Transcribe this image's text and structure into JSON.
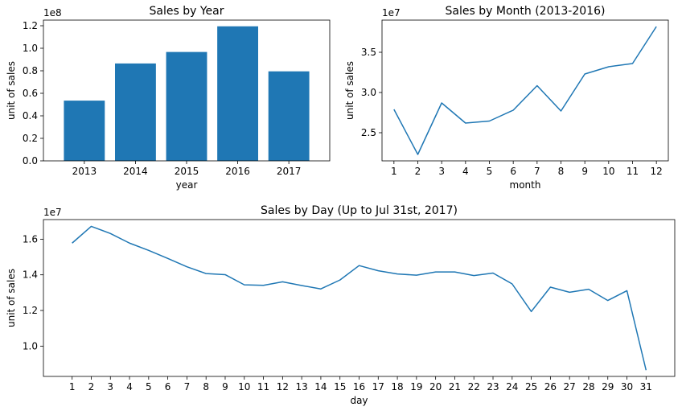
{
  "chart_data": [
    {
      "id": "year",
      "type": "bar",
      "title": "Sales by Year",
      "xlabel": "year",
      "ylabel": "unit of sales",
      "scale_label": "1e8",
      "categories": [
        "2013",
        "2014",
        "2015",
        "2016",
        "2017"
      ],
      "values": [
        0.535,
        0.865,
        0.967,
        1.195,
        0.795
      ],
      "ylim": [
        0,
        1.25
      ],
      "yticks": [
        0.0,
        0.2,
        0.4,
        0.6,
        0.8,
        1.0,
        1.2
      ],
      "ytick_labels": [
        "0.0",
        "0.2",
        "0.4",
        "0.6",
        "0.8",
        "1.0",
        "1.2"
      ],
      "color": "#1f77b4",
      "grid": false
    },
    {
      "id": "month",
      "type": "line",
      "title": "Sales by Month (2013-2016)",
      "xlabel": "month",
      "ylabel": "unit of sales",
      "scale_label": "1e7",
      "x": [
        1,
        2,
        3,
        4,
        5,
        6,
        7,
        8,
        9,
        10,
        11,
        12
      ],
      "values": [
        2.79,
        2.23,
        2.87,
        2.62,
        2.645,
        2.78,
        3.085,
        2.77,
        3.23,
        3.32,
        3.36,
        3.82
      ],
      "xlim": [
        0.5,
        12.5
      ],
      "ylim": [
        2.15,
        3.9
      ],
      "xticks": [
        1,
        2,
        3,
        4,
        5,
        6,
        7,
        8,
        9,
        10,
        11,
        12
      ],
      "yticks": [
        2.5,
        3.0,
        3.5
      ],
      "ytick_labels": [
        "2.5",
        "3.0",
        "3.5"
      ],
      "color": "#1f77b4",
      "grid": false
    },
    {
      "id": "day",
      "type": "line",
      "title": "Sales by Day (Up to Jul 31st, 2017)",
      "xlabel": "day",
      "ylabel": "unit of sales",
      "scale_label": "1e7",
      "x": [
        1,
        2,
        3,
        4,
        5,
        6,
        7,
        8,
        9,
        10,
        11,
        12,
        13,
        14,
        15,
        16,
        17,
        18,
        19,
        20,
        21,
        22,
        23,
        24,
        25,
        26,
        27,
        28,
        29,
        30,
        31
      ],
      "values": [
        1.578,
        1.672,
        1.632,
        1.578,
        1.537,
        1.492,
        1.445,
        1.407,
        1.401,
        1.344,
        1.341,
        1.361,
        1.34,
        1.321,
        1.371,
        1.452,
        1.423,
        1.405,
        1.398,
        1.416,
        1.416,
        1.396,
        1.41,
        1.349,
        1.194,
        1.331,
        1.302,
        1.319,
        1.256,
        1.311,
        0.865
      ],
      "xlim": [
        -0.5,
        32.5
      ],
      "ylim": [
        0.83,
        1.71
      ],
      "xticks": [
        1,
        2,
        3,
        4,
        5,
        6,
        7,
        8,
        9,
        10,
        11,
        12,
        13,
        14,
        15,
        16,
        17,
        18,
        19,
        20,
        21,
        22,
        23,
        24,
        25,
        26,
        27,
        28,
        29,
        30,
        31
      ],
      "yticks": [
        1.0,
        1.2,
        1.4,
        1.6
      ],
      "ytick_labels": [
        "1.0",
        "1.2",
        "1.4",
        "1.6"
      ],
      "color": "#1f77b4",
      "grid": false
    }
  ]
}
